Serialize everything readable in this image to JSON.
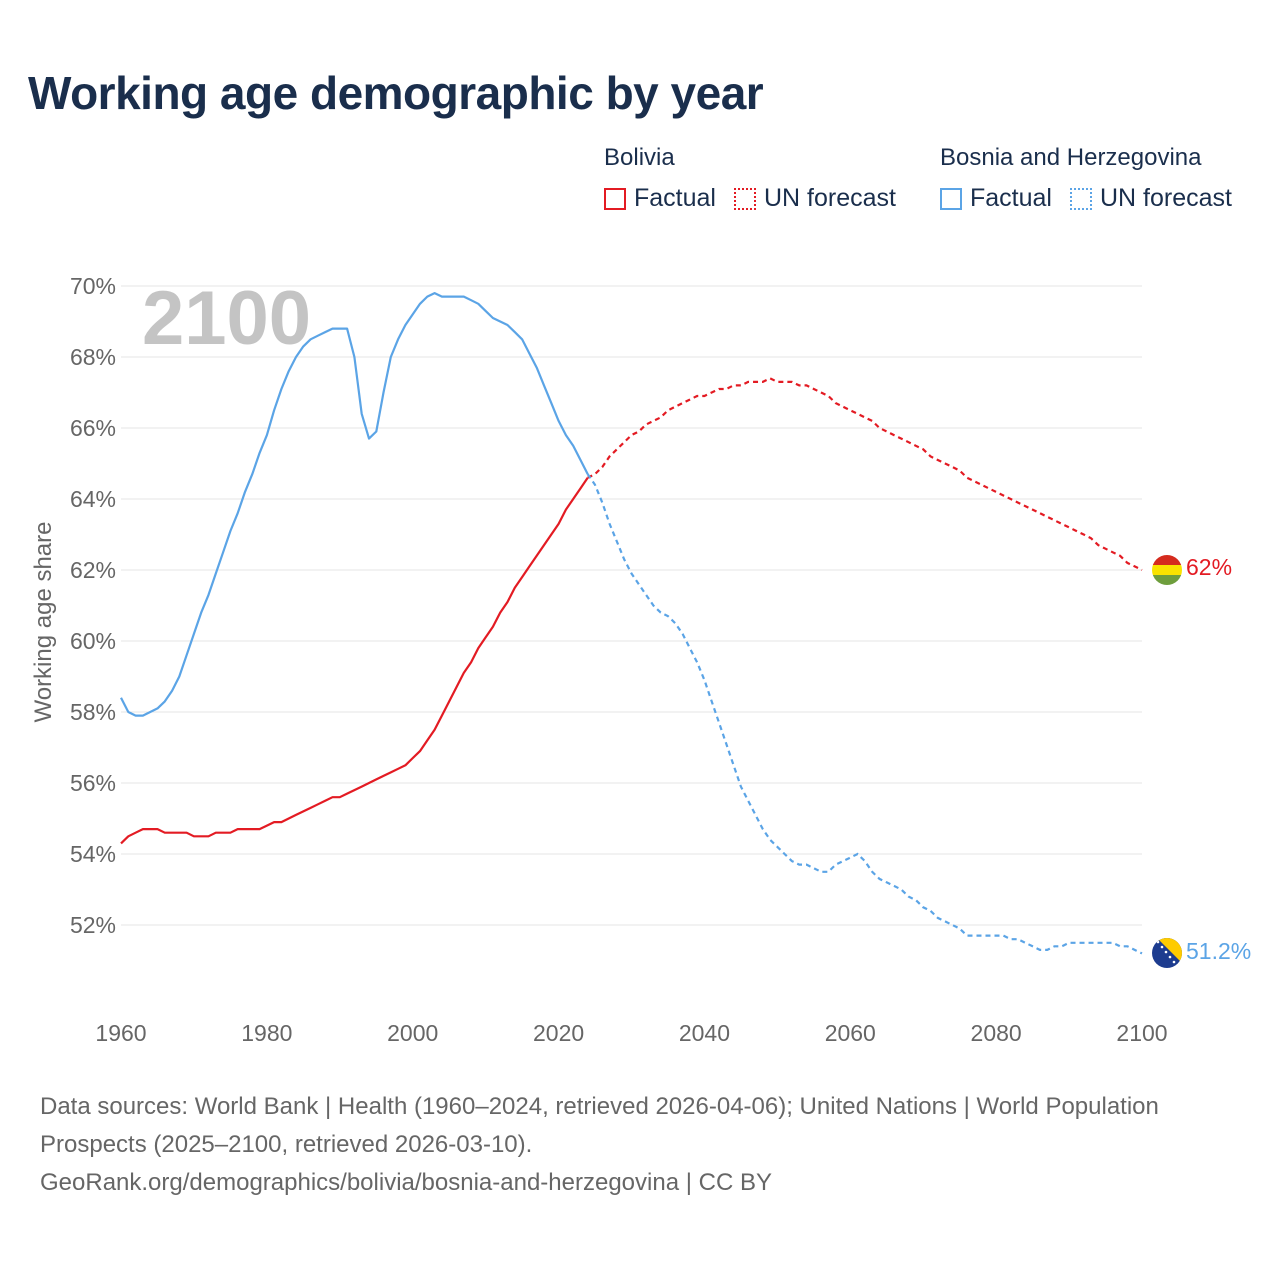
{
  "title": "Working age demographic by year",
  "legend": {
    "groups": [
      {
        "country": "Bolivia",
        "factual_label": "Factual",
        "forecast_label": "UN forecast"
      },
      {
        "country": "Bosnia and Herzegovina",
        "factual_label": "Factual",
        "forecast_label": "UN forecast"
      }
    ]
  },
  "year_watermark": "2100",
  "colors": {
    "bolivia": "#e31b23",
    "bosnia": "#5ba4e6",
    "grid": "#e6e6e6",
    "axis_text": "#666666"
  },
  "footer": {
    "sources": "Data sources: World Bank | Health (1960–2024, retrieved 2026-04-06); United Nations | World Population Prospects (2025–2100, retrieved 2026-03-10).",
    "attribution": "GeoRank.org/demographics/bolivia/bosnia-and-herzegovina | CC BY"
  },
  "chart_data": {
    "type": "line",
    "title": "Working age demographic by year",
    "xlabel": "",
    "ylabel": "Working age share",
    "xlim": [
      1960,
      2100
    ],
    "ylim": [
      50,
      70
    ],
    "x_ticks": [
      1960,
      1980,
      2000,
      2020,
      2040,
      2060,
      2080,
      2100
    ],
    "x_tick_labels": [
      "1960",
      "1980",
      "2000",
      "2020",
      "2040",
      "2060",
      "2080",
      "2100"
    ],
    "y_ticks": [
      52,
      54,
      56,
      58,
      60,
      62,
      64,
      66,
      68,
      70
    ],
    "y_tick_labels": [
      "52%",
      "54%",
      "56%",
      "58%",
      "60%",
      "62%",
      "64%",
      "66%",
      "68%",
      "70%"
    ],
    "factual_end_year": 2024,
    "series": [
      {
        "name": "Bolivia",
        "color": "#e31b23",
        "end_label": "62%",
        "points": [
          [
            1960,
            54.3
          ],
          [
            1961,
            54.5
          ],
          [
            1962,
            54.6
          ],
          [
            1963,
            54.7
          ],
          [
            1964,
            54.7
          ],
          [
            1965,
            54.7
          ],
          [
            1966,
            54.6
          ],
          [
            1967,
            54.6
          ],
          [
            1968,
            54.6
          ],
          [
            1969,
            54.6
          ],
          [
            1970,
            54.5
          ],
          [
            1971,
            54.5
          ],
          [
            1972,
            54.5
          ],
          [
            1973,
            54.6
          ],
          [
            1974,
            54.6
          ],
          [
            1975,
            54.6
          ],
          [
            1976,
            54.7
          ],
          [
            1977,
            54.7
          ],
          [
            1978,
            54.7
          ],
          [
            1979,
            54.7
          ],
          [
            1980,
            54.8
          ],
          [
            1981,
            54.9
          ],
          [
            1982,
            54.9
          ],
          [
            1983,
            55.0
          ],
          [
            1984,
            55.1
          ],
          [
            1985,
            55.2
          ],
          [
            1986,
            55.3
          ],
          [
            1987,
            55.4
          ],
          [
            1988,
            55.5
          ],
          [
            1989,
            55.6
          ],
          [
            1990,
            55.6
          ],
          [
            1991,
            55.7
          ],
          [
            1992,
            55.8
          ],
          [
            1993,
            55.9
          ],
          [
            1994,
            56.0
          ],
          [
            1995,
            56.1
          ],
          [
            1996,
            56.2
          ],
          [
            1997,
            56.3
          ],
          [
            1998,
            56.4
          ],
          [
            1999,
            56.5
          ],
          [
            2000,
            56.7
          ],
          [
            2001,
            56.9
          ],
          [
            2002,
            57.2
          ],
          [
            2003,
            57.5
          ],
          [
            2004,
            57.9
          ],
          [
            2005,
            58.3
          ],
          [
            2006,
            58.7
          ],
          [
            2007,
            59.1
          ],
          [
            2008,
            59.4
          ],
          [
            2009,
            59.8
          ],
          [
            2010,
            60.1
          ],
          [
            2011,
            60.4
          ],
          [
            2012,
            60.8
          ],
          [
            2013,
            61.1
          ],
          [
            2014,
            61.5
          ],
          [
            2015,
            61.8
          ],
          [
            2016,
            62.1
          ],
          [
            2017,
            62.4
          ],
          [
            2018,
            62.7
          ],
          [
            2019,
            63.0
          ],
          [
            2020,
            63.3
          ],
          [
            2021,
            63.7
          ],
          [
            2022,
            64.0
          ],
          [
            2023,
            64.3
          ],
          [
            2024,
            64.6
          ],
          [
            2025,
            64.7
          ],
          [
            2026,
            64.9
          ],
          [
            2027,
            65.2
          ],
          [
            2028,
            65.4
          ],
          [
            2029,
            65.6
          ],
          [
            2030,
            65.8
          ],
          [
            2031,
            65.9
          ],
          [
            2032,
            66.1
          ],
          [
            2033,
            66.2
          ],
          [
            2034,
            66.3
          ],
          [
            2035,
            66.5
          ],
          [
            2036,
            66.6
          ],
          [
            2037,
            66.7
          ],
          [
            2038,
            66.8
          ],
          [
            2039,
            66.9
          ],
          [
            2040,
            66.9
          ],
          [
            2041,
            67.0
          ],
          [
            2042,
            67.1
          ],
          [
            2043,
            67.1
          ],
          [
            2044,
            67.2
          ],
          [
            2045,
            67.2
          ],
          [
            2046,
            67.3
          ],
          [
            2047,
            67.3
          ],
          [
            2048,
            67.3
          ],
          [
            2049,
            67.4
          ],
          [
            2050,
            67.3
          ],
          [
            2051,
            67.3
          ],
          [
            2052,
            67.3
          ],
          [
            2053,
            67.2
          ],
          [
            2054,
            67.2
          ],
          [
            2055,
            67.1
          ],
          [
            2056,
            67.0
          ],
          [
            2057,
            66.9
          ],
          [
            2058,
            66.7
          ],
          [
            2059,
            66.6
          ],
          [
            2060,
            66.5
          ],
          [
            2061,
            66.4
          ],
          [
            2062,
            66.3
          ],
          [
            2063,
            66.2
          ],
          [
            2064,
            66.0
          ],
          [
            2065,
            65.9
          ],
          [
            2066,
            65.8
          ],
          [
            2067,
            65.7
          ],
          [
            2068,
            65.6
          ],
          [
            2069,
            65.5
          ],
          [
            2070,
            65.4
          ],
          [
            2071,
            65.2
          ],
          [
            2072,
            65.1
          ],
          [
            2073,
            65.0
          ],
          [
            2074,
            64.9
          ],
          [
            2075,
            64.8
          ],
          [
            2076,
            64.6
          ],
          [
            2077,
            64.5
          ],
          [
            2078,
            64.4
          ],
          [
            2079,
            64.3
          ],
          [
            2080,
            64.2
          ],
          [
            2081,
            64.1
          ],
          [
            2082,
            64.0
          ],
          [
            2083,
            63.9
          ],
          [
            2084,
            63.8
          ],
          [
            2085,
            63.7
          ],
          [
            2086,
            63.6
          ],
          [
            2087,
            63.5
          ],
          [
            2088,
            63.4
          ],
          [
            2089,
            63.3
          ],
          [
            2090,
            63.2
          ],
          [
            2091,
            63.1
          ],
          [
            2092,
            63.0
          ],
          [
            2093,
            62.9
          ],
          [
            2094,
            62.7
          ],
          [
            2095,
            62.6
          ],
          [
            2096,
            62.5
          ],
          [
            2097,
            62.4
          ],
          [
            2098,
            62.2
          ],
          [
            2099,
            62.1
          ],
          [
            2100,
            62.0
          ]
        ]
      },
      {
        "name": "Bosnia and Herzegovina",
        "color": "#5ba4e6",
        "end_label": "51.2%",
        "points": [
          [
            1960,
            58.4
          ],
          [
            1961,
            58.0
          ],
          [
            1962,
            57.9
          ],
          [
            1963,
            57.9
          ],
          [
            1964,
            58.0
          ],
          [
            1965,
            58.1
          ],
          [
            1966,
            58.3
          ],
          [
            1967,
            58.6
          ],
          [
            1968,
            59.0
          ],
          [
            1969,
            59.6
          ],
          [
            1970,
            60.2
          ],
          [
            1971,
            60.8
          ],
          [
            1972,
            61.3
          ],
          [
            1973,
            61.9
          ],
          [
            1974,
            62.5
          ],
          [
            1975,
            63.1
          ],
          [
            1976,
            63.6
          ],
          [
            1977,
            64.2
          ],
          [
            1978,
            64.7
          ],
          [
            1979,
            65.3
          ],
          [
            1980,
            65.8
          ],
          [
            1981,
            66.5
          ],
          [
            1982,
            67.1
          ],
          [
            1983,
            67.6
          ],
          [
            1984,
            68.0
          ],
          [
            1985,
            68.3
          ],
          [
            1986,
            68.5
          ],
          [
            1987,
            68.6
          ],
          [
            1988,
            68.7
          ],
          [
            1989,
            68.8
          ],
          [
            1990,
            68.8
          ],
          [
            1991,
            68.8
          ],
          [
            1992,
            68.0
          ],
          [
            1993,
            66.4
          ],
          [
            1994,
            65.7
          ],
          [
            1995,
            65.9
          ],
          [
            1996,
            67.0
          ],
          [
            1997,
            68.0
          ],
          [
            1998,
            68.5
          ],
          [
            1999,
            68.9
          ],
          [
            2000,
            69.2
          ],
          [
            2001,
            69.5
          ],
          [
            2002,
            69.7
          ],
          [
            2003,
            69.8
          ],
          [
            2004,
            69.7
          ],
          [
            2005,
            69.7
          ],
          [
            2006,
            69.7
          ],
          [
            2007,
            69.7
          ],
          [
            2008,
            69.6
          ],
          [
            2009,
            69.5
          ],
          [
            2010,
            69.3
          ],
          [
            2011,
            69.1
          ],
          [
            2012,
            69.0
          ],
          [
            2013,
            68.9
          ],
          [
            2014,
            68.7
          ],
          [
            2015,
            68.5
          ],
          [
            2016,
            68.1
          ],
          [
            2017,
            67.7
          ],
          [
            2018,
            67.2
          ],
          [
            2019,
            66.7
          ],
          [
            2020,
            66.2
          ],
          [
            2021,
            65.8
          ],
          [
            2022,
            65.5
          ],
          [
            2023,
            65.1
          ],
          [
            2024,
            64.7
          ],
          [
            2025,
            64.4
          ],
          [
            2026,
            63.9
          ],
          [
            2027,
            63.3
          ],
          [
            2028,
            62.8
          ],
          [
            2029,
            62.3
          ],
          [
            2030,
            61.9
          ],
          [
            2031,
            61.6
          ],
          [
            2032,
            61.3
          ],
          [
            2033,
            61.0
          ],
          [
            2034,
            60.8
          ],
          [
            2035,
            60.7
          ],
          [
            2036,
            60.5
          ],
          [
            2037,
            60.2
          ],
          [
            2038,
            59.8
          ],
          [
            2039,
            59.4
          ],
          [
            2040,
            58.9
          ],
          [
            2041,
            58.3
          ],
          [
            2042,
            57.7
          ],
          [
            2043,
            57.1
          ],
          [
            2044,
            56.5
          ],
          [
            2045,
            55.9
          ],
          [
            2046,
            55.5
          ],
          [
            2047,
            55.1
          ],
          [
            2048,
            54.7
          ],
          [
            2049,
            54.4
          ],
          [
            2050,
            54.2
          ],
          [
            2051,
            54.0
          ],
          [
            2052,
            53.8
          ],
          [
            2053,
            53.7
          ],
          [
            2054,
            53.7
          ],
          [
            2055,
            53.6
          ],
          [
            2056,
            53.5
          ],
          [
            2057,
            53.5
          ],
          [
            2058,
            53.7
          ],
          [
            2059,
            53.8
          ],
          [
            2060,
            53.9
          ],
          [
            2061,
            54.0
          ],
          [
            2062,
            53.8
          ],
          [
            2063,
            53.5
          ],
          [
            2064,
            53.3
          ],
          [
            2065,
            53.2
          ],
          [
            2066,
            53.1
          ],
          [
            2067,
            53.0
          ],
          [
            2068,
            52.8
          ],
          [
            2069,
            52.7
          ],
          [
            2070,
            52.5
          ],
          [
            2071,
            52.4
          ],
          [
            2072,
            52.2
          ],
          [
            2073,
            52.1
          ],
          [
            2074,
            52.0
          ],
          [
            2075,
            51.9
          ],
          [
            2076,
            51.7
          ],
          [
            2077,
            51.7
          ],
          [
            2078,
            51.7
          ],
          [
            2079,
            51.7
          ],
          [
            2080,
            51.7
          ],
          [
            2081,
            51.7
          ],
          [
            2082,
            51.6
          ],
          [
            2083,
            51.6
          ],
          [
            2084,
            51.5
          ],
          [
            2085,
            51.4
          ],
          [
            2086,
            51.3
          ],
          [
            2087,
            51.3
          ],
          [
            2088,
            51.4
          ],
          [
            2089,
            51.4
          ],
          [
            2090,
            51.5
          ],
          [
            2091,
            51.5
          ],
          [
            2092,
            51.5
          ],
          [
            2093,
            51.5
          ],
          [
            2094,
            51.5
          ],
          [
            2095,
            51.5
          ],
          [
            2096,
            51.5
          ],
          [
            2097,
            51.4
          ],
          [
            2098,
            51.4
          ],
          [
            2099,
            51.3
          ],
          [
            2100,
            51.2
          ]
        ]
      }
    ]
  }
}
